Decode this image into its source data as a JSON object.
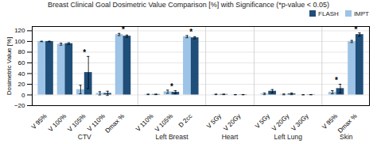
{
  "chart_data": {
    "type": "bar",
    "title": "Breast Clinical Goal Dosimetric Value Comparison [%] with Significance (*p-value < 0.05)",
    "ylabel": "Dosimetric Value [%]",
    "categories": [
      "V 95%",
      "V 100%",
      "V 105%",
      "V 110%",
      "Dmax %",
      "V 110%",
      "V 105%",
      "D 2cc",
      "V 5Gy",
      "V 20Gy",
      "V 5Gy",
      "V 20Gy",
      "V 30Gy",
      "V 95%",
      "Dmax %"
    ],
    "category_groups": [
      "CTV",
      "CTV",
      "CTV",
      "CTV",
      "CTV",
      "Left Breast",
      "Left Breast",
      "Left Breast",
      "Heart",
      "Heart",
      "Left Lung",
      "Left Lung",
      "Left Lung",
      "Skin",
      "Skin"
    ],
    "series": [
      {
        "name": "IMPT",
        "color": "#9dc3e6",
        "values": [
          100,
          95,
          10,
          3,
          113,
          1,
          6,
          109,
          1,
          0.5,
          2,
          1,
          0.3,
          5,
          100
        ],
        "errors": [
          0.5,
          2.0,
          8,
          3,
          2,
          0.5,
          3,
          2,
          0.5,
          0.3,
          1.5,
          0.8,
          0.2,
          3,
          2
        ]
      },
      {
        "name": "FLASH",
        "color": "#1f4e79",
        "values": [
          100,
          96,
          42,
          3,
          110,
          1,
          5,
          107,
          1,
          0.5,
          7,
          2,
          0.5,
          12,
          113
        ],
        "errors": [
          0.5,
          1.5,
          30,
          4,
          2,
          0.5,
          3,
          2,
          0.5,
          0.3,
          3,
          1.5,
          0.3,
          8,
          3
        ]
      }
    ],
    "significant": [
      false,
      false,
      true,
      false,
      true,
      false,
      true,
      true,
      false,
      false,
      false,
      false,
      false,
      true,
      true
    ],
    "significance_label": "*",
    "ylim": [
      -20,
      128
    ],
    "yticks": [
      -20,
      0,
      20,
      40,
      60,
      80,
      100,
      120
    ],
    "grid": true,
    "legend": "upper right"
  }
}
